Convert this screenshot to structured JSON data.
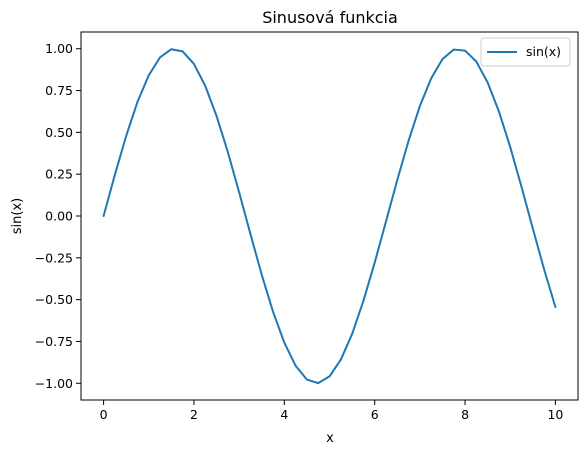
{
  "chart_data": {
    "type": "line",
    "title": "Sinusová funkcia",
    "xlabel": "x",
    "ylabel": "sin(x)",
    "xlim": [
      -0.5,
      10.5
    ],
    "ylim": [
      -1.1,
      1.1
    ],
    "x_ticks": [
      0,
      2,
      4,
      6,
      8,
      10
    ],
    "x_tick_labels": [
      "0",
      "2",
      "4",
      "6",
      "8",
      "10"
    ],
    "y_ticks": [
      1.0,
      0.75,
      0.5,
      0.25,
      0.0,
      -0.25,
      -0.5,
      -0.75,
      -1.0
    ],
    "y_tick_labels": [
      "1.00",
      "0.75",
      "0.50",
      "0.25",
      "0.00",
      "−0.25",
      "−0.50",
      "−0.75",
      "−1.00"
    ],
    "grid": false,
    "legend_position": "top-right",
    "series": [
      {
        "name": "sin(x)",
        "color": "#1f77b4",
        "x": [
          0,
          0.25,
          0.5,
          0.75,
          1,
          1.25,
          1.5,
          1.75,
          2,
          2.25,
          2.5,
          2.75,
          3,
          3.25,
          3.5,
          3.75,
          4,
          4.25,
          4.5,
          4.75,
          5,
          5.25,
          5.5,
          5.75,
          6,
          6.25,
          6.5,
          6.75,
          7,
          7.25,
          7.5,
          7.75,
          8,
          8.25,
          8.5,
          8.75,
          9,
          9.25,
          9.5,
          9.75,
          10
        ],
        "y": [
          0.0,
          0.247,
          0.479,
          0.682,
          0.841,
          0.949,
          0.997,
          0.984,
          0.909,
          0.778,
          0.598,
          0.382,
          0.141,
          -0.108,
          -0.351,
          -0.572,
          -0.757,
          -0.895,
          -0.978,
          -0.999,
          -0.959,
          -0.859,
          -0.706,
          -0.508,
          -0.279,
          -0.033,
          0.215,
          0.45,
          0.657,
          0.823,
          0.938,
          0.995,
          0.989,
          0.923,
          0.798,
          0.625,
          0.412,
          0.174,
          -0.075,
          -0.319,
          -0.544
        ]
      }
    ]
  }
}
